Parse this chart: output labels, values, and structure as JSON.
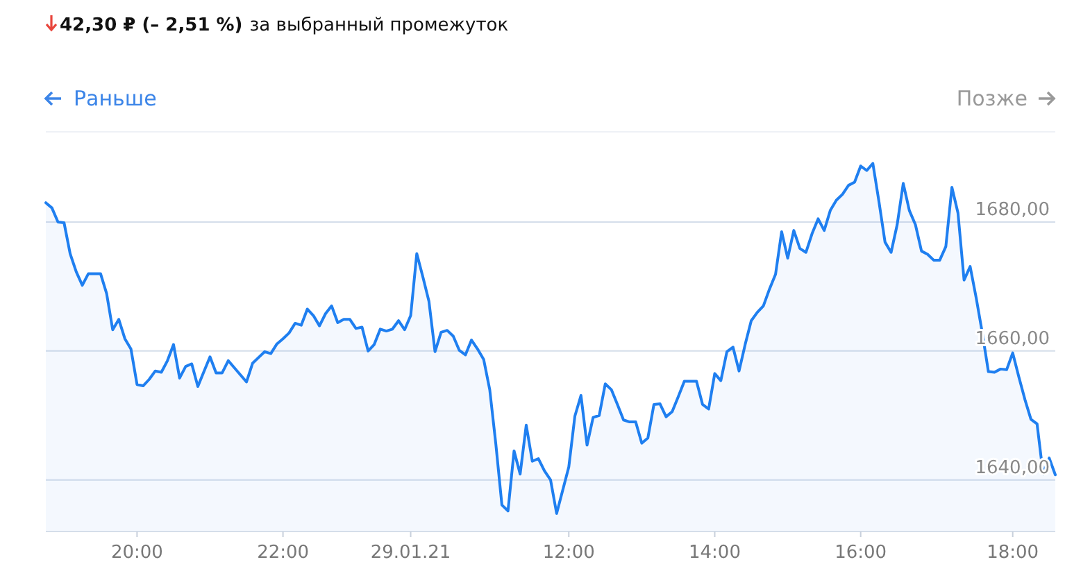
{
  "chart_data": {
    "type": "area",
    "title": "42,30 ₽ (– 2,51 %)",
    "subtitle": "за выбранный промежуток",
    "annotations": [
      "Раньше",
      "Позже"
    ],
    "categories": [
      null,
      null,
      null,
      null,
      null,
      null,
      null,
      null,
      null,
      null,
      null,
      null,
      null,
      null,
      null,
      "20:00",
      null,
      null,
      null,
      null,
      null,
      null,
      null,
      null,
      null,
      null,
      null,
      null,
      null,
      null,
      null,
      null,
      null,
      null,
      null,
      null,
      null,
      null,
      null,
      "22:00",
      null,
      null,
      null,
      null,
      null,
      null,
      null,
      null,
      null,
      null,
      null,
      null,
      null,
      null,
      null,
      null,
      null,
      null,
      null,
      null,
      "29.01.21",
      null,
      null,
      null,
      null,
      null,
      null,
      null,
      null,
      null,
      null,
      null,
      null,
      null,
      null,
      null,
      null,
      null,
      null,
      null,
      null,
      null,
      null,
      null,
      null,
      null,
      "12:00",
      null,
      null,
      null,
      null,
      null,
      null,
      null,
      null,
      null,
      null,
      null,
      null,
      null,
      null,
      null,
      null,
      null,
      null,
      null,
      null,
      null,
      null,
      null,
      "14:00",
      null,
      null,
      null,
      null,
      null,
      null,
      null,
      null,
      null,
      null,
      null,
      null,
      null,
      null,
      null,
      null,
      null,
      null,
      null,
      null,
      null,
      null,
      null,
      "16:00",
      null,
      null,
      null,
      null,
      null,
      null,
      null,
      null,
      null,
      null,
      null,
      null,
      null,
      null,
      null,
      null,
      null,
      null,
      null,
      null,
      null,
      null,
      null,
      null,
      "18:00",
      null,
      null,
      null,
      null,
      null,
      null,
      null
    ],
    "series": [
      {
        "color": "#1f7ff0",
        "values": [
          1683.0,
          1682.2,
          1680.0,
          1679.9,
          1675.1,
          1672.3,
          1670.2,
          1672.0,
          1672.0,
          1672.0,
          1668.9,
          1663.3,
          1664.9,
          1661.9,
          1660.3,
          1654.8,
          1654.6,
          1655.6,
          1656.9,
          1656.7,
          1658.5,
          1661.0,
          1655.8,
          1657.6,
          1658.0,
          1654.5,
          1656.8,
          1659.1,
          1656.6,
          1656.6,
          1658.5,
          1657.4,
          1656.3,
          1655.2,
          1658.1,
          1659.0,
          1659.9,
          1659.6,
          1661.1,
          1661.9,
          1662.8,
          1664.3,
          1664.0,
          1666.5,
          1665.5,
          1663.9,
          1665.8,
          1667.0,
          1664.4,
          1664.9,
          1664.9,
          1663.5,
          1663.7,
          1660.0,
          1661.0,
          1663.4,
          1663.1,
          1663.4,
          1664.7,
          1663.3,
          1665.5,
          1675.1,
          1671.5,
          1667.7,
          1659.9,
          1662.9,
          1663.2,
          1662.3,
          1660.1,
          1659.4,
          1661.7,
          1660.3,
          1658.7,
          1654.0,
          1645.6,
          1636.1,
          1635.2,
          1644.5,
          1640.9,
          1648.5,
          1642.9,
          1643.3,
          1641.4,
          1640.0,
          1634.8,
          1638.4,
          1642.0,
          1649.9,
          1653.1,
          1645.4,
          1649.7,
          1650.0,
          1654.9,
          1654.0,
          1651.7,
          1649.3,
          1649.0,
          1649.0,
          1645.7,
          1646.5,
          1651.7,
          1651.8,
          1649.8,
          1650.6,
          1652.9,
          1655.3,
          1655.3,
          1655.3,
          1651.7,
          1651.0,
          1656.5,
          1655.4,
          1659.9,
          1660.6,
          1656.9,
          1661.0,
          1664.7,
          1666.0,
          1667.0,
          1669.6,
          1671.9,
          1678.5,
          1674.4,
          1678.7,
          1675.9,
          1675.3,
          1678.2,
          1680.5,
          1678.7,
          1681.8,
          1683.4,
          1684.3,
          1685.7,
          1686.2,
          1688.7,
          1688.0,
          1689.1,
          1683.2,
          1676.9,
          1675.3,
          1679.6,
          1686.0,
          1681.8,
          1679.6,
          1675.5,
          1675.0,
          1674.1,
          1674.1,
          1676.2,
          1685.4,
          1681.4,
          1671.0,
          1673.1,
          1668.2,
          1662.8,
          1656.8,
          1656.7,
          1657.2,
          1657.1,
          1659.7,
          1656.0,
          1652.5,
          1649.4,
          1648.7,
          1640.9,
          1643.4,
          1640.8
        ]
      }
    ],
    "ylim": [
      1632,
      1694
    ],
    "yticks": [
      {
        "value": 1640,
        "label": "1640,00"
      },
      {
        "value": 1660,
        "label": "1660,00"
      },
      {
        "value": 1680,
        "label": "1680,00"
      }
    ],
    "grid": "y",
    "marker": "none",
    "line_style": "solid"
  }
}
